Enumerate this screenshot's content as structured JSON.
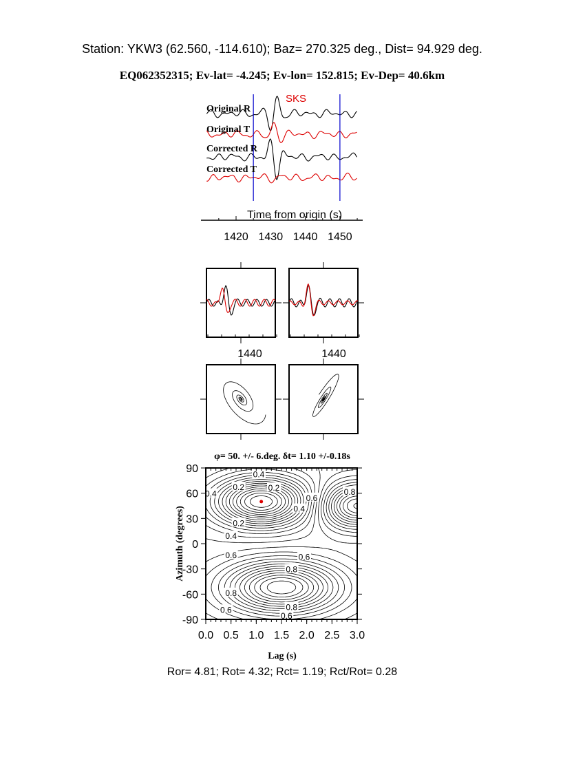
{
  "header": {
    "station_line": "Station: YKW3 (62.560, -114.610); Baz=  270.325 deg., Dist=   94.929 deg.",
    "event_line": "EQ062352315; Ev-lat=  -4.245; Ev-lon= 152.815; Ev-Dep= 40.6km"
  },
  "colors": {
    "black_trace": "#000000",
    "red_trace": "#dd0000",
    "window_lines": "#0000cc",
    "min_dot": "#dd0000"
  },
  "chart_data": [
    {
      "type": "line",
      "title": "",
      "phase_label": "SKS",
      "xlabel": "Time from origin (s)",
      "x_ticks": [
        1420,
        1430,
        1440,
        1450
      ],
      "xlim": [
        1410,
        1456
      ],
      "window": [
        1425,
        1450
      ],
      "traces": [
        {
          "name": "Original R",
          "color": "#000000"
        },
        {
          "name": "Original T",
          "color": "#dd0000"
        },
        {
          "name": "Corrected R",
          "color": "#000000"
        },
        {
          "name": "Corrected T",
          "color": "#dd0000"
        }
      ]
    },
    {
      "type": "line",
      "panels": [
        "original overlay",
        "corrected overlay"
      ],
      "x_tick_label": "1440"
    },
    {
      "type": "scatter",
      "panels": [
        "original particle motion",
        "corrected particle motion"
      ]
    },
    {
      "type": "contour",
      "title": "φ= 50. +/- 6.deg. δt= 1.10 +/-0.18s",
      "xlabel": "Lag (s)",
      "ylabel": "Azimuth (degrees)",
      "xlim": [
        0,
        3
      ],
      "ylim": [
        -90,
        90
      ],
      "x_ticks": [
        "0.0",
        "0.5",
        "1.0",
        "1.5",
        "2.0",
        "2.5",
        "3.0"
      ],
      "y_ticks": [
        "90",
        "60",
        "30",
        "0",
        "-30",
        "-60",
        "-90"
      ],
      "minimum": {
        "lag": 1.1,
        "azimuth": 50
      },
      "contour_labels": [
        {
          "text": "0.4",
          "lag": 1.05,
          "az": 83
        },
        {
          "text": "0.2",
          "lag": 0.65,
          "az": 68
        },
        {
          "text": "0.2",
          "lag": 1.35,
          "az": 67
        },
        {
          "text": "0.4",
          "lag": 0.1,
          "az": 60
        },
        {
          "text": "0.6",
          "lag": 2.1,
          "az": 55
        },
        {
          "text": "0.8",
          "lag": 2.85,
          "az": 62
        },
        {
          "text": "0.4",
          "lag": 1.85,
          "az": 42
        },
        {
          "text": "0.2",
          "lag": 0.65,
          "az": 25
        },
        {
          "text": "0.4",
          "lag": 0.5,
          "az": 10
        },
        {
          "text": "0.6",
          "lag": 0.5,
          "az": -13
        },
        {
          "text": "0.6",
          "lag": 1.95,
          "az": -15
        },
        {
          "text": "0.8",
          "lag": 1.7,
          "az": -30
        },
        {
          "text": "0.8",
          "lag": 0.5,
          "az": -58
        },
        {
          "text": "0.8",
          "lag": 1.7,
          "az": -75
        },
        {
          "text": "0.6",
          "lag": 0.4,
          "az": -78
        },
        {
          "text": "0.6",
          "lag": 1.6,
          "az": -85
        }
      ]
    }
  ],
  "footer": {
    "ratios": "Ror= 4.81; Rot= 4.32; Rct= 1.19; Rct/Rot= 0.28"
  }
}
